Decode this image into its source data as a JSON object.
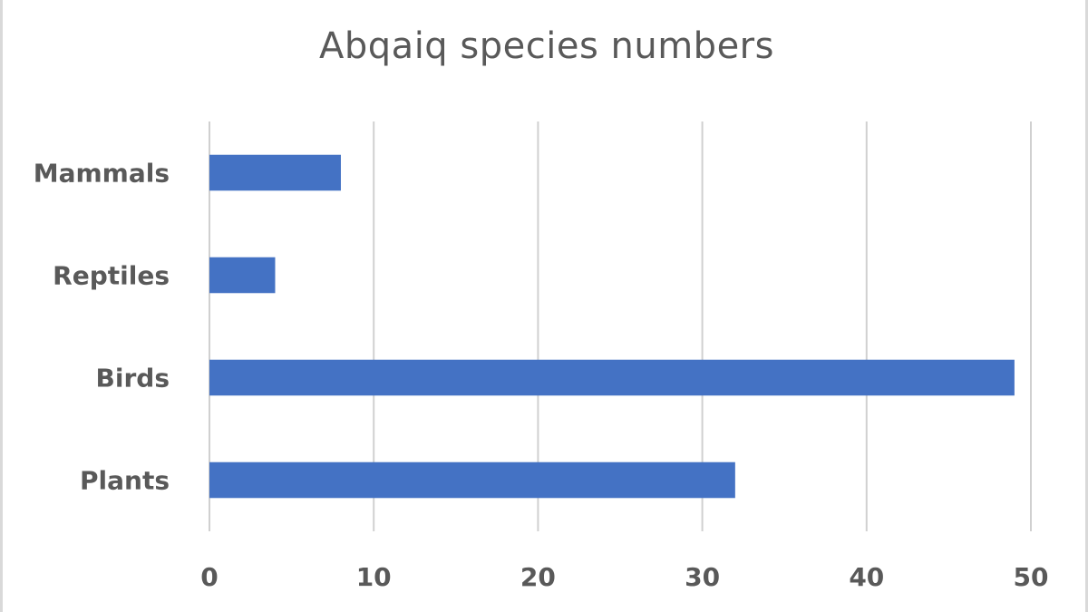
{
  "chart_data": {
    "type": "bar",
    "orientation": "horizontal",
    "title": "Abqaiq species numbers",
    "xlabel": "",
    "ylabel": "",
    "categories": [
      "Mammals",
      "Reptiles",
      "Birds",
      "Plants"
    ],
    "values": [
      8,
      4,
      49,
      32
    ],
    "xlim": [
      0,
      50
    ],
    "xticks": [
      0,
      10,
      20,
      30,
      40,
      50
    ],
    "grid": true,
    "legend": "none",
    "bar_color": "#4472c4"
  }
}
